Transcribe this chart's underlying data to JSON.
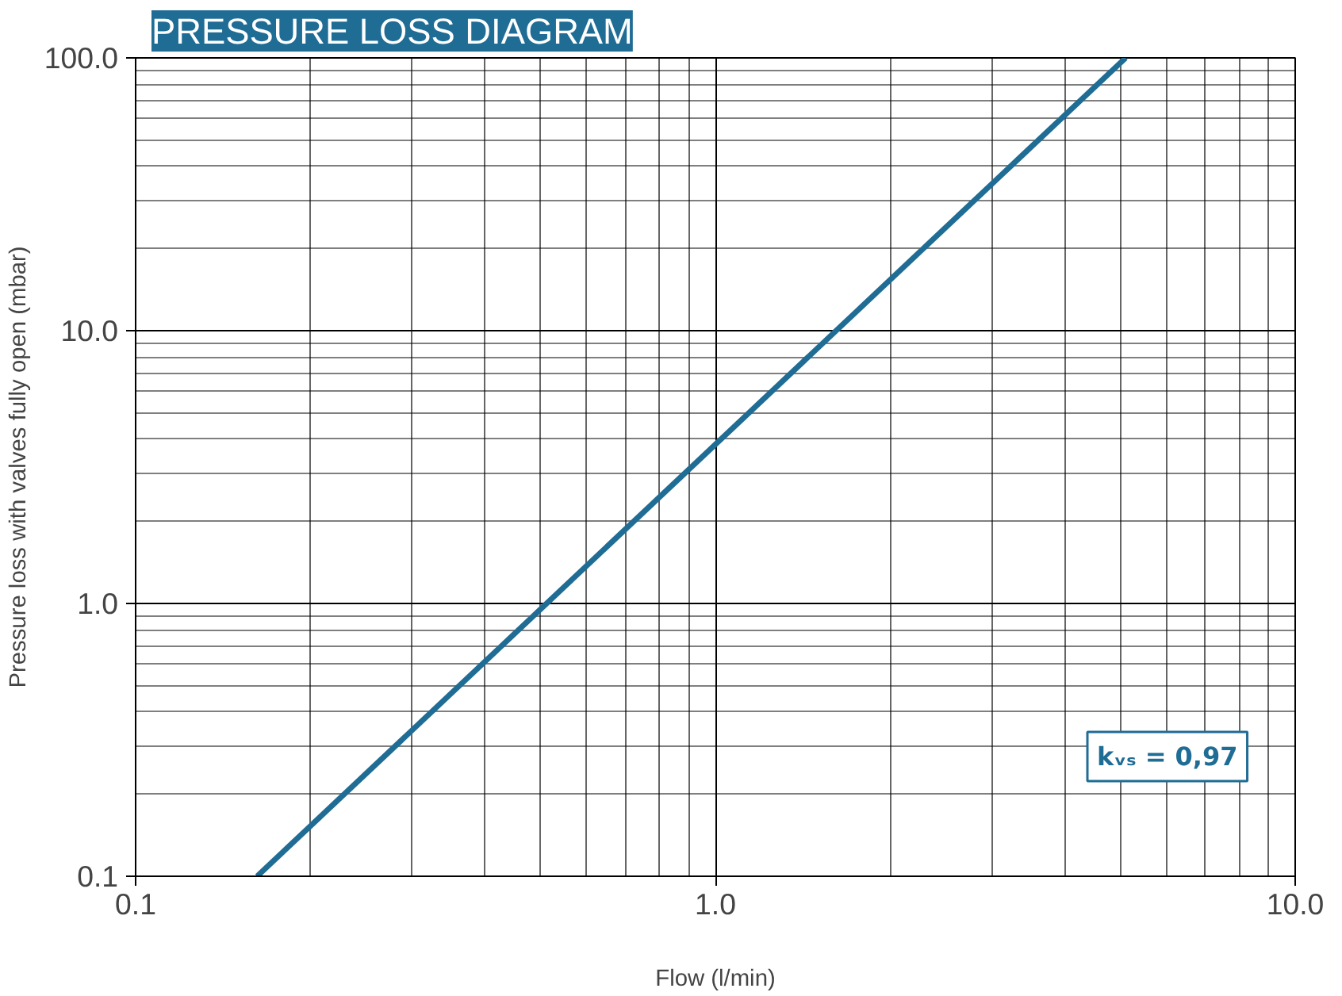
{
  "chart_data": {
    "type": "line",
    "title": "PRESSURE LOSS DIAGRAM",
    "xlabel": "Flow (l/min)",
    "ylabel": "Pressure loss with valves fully open (mbar)",
    "x": [
      0.162,
      5.1
    ],
    "series": [
      {
        "color": "#1f6c95",
        "values": [
          0.1,
          100
        ]
      }
    ],
    "log": "xy",
    "xlim": [
      0.1,
      10
    ],
    "ylim": [
      0.1,
      100
    ],
    "xticks": [
      {
        "value": 0.1,
        "label": "0.1"
      },
      {
        "value": 1,
        "label": "1.0"
      },
      {
        "value": 10,
        "label": "10.0"
      }
    ],
    "yticks": [
      {
        "value": 0.1,
        "label": "0.1"
      },
      {
        "value": 1,
        "label": "1.0"
      },
      {
        "value": 10,
        "label": "10.0"
      },
      {
        "value": 100,
        "label": "100.0"
      }
    ],
    "grid": true,
    "line_style": "solid",
    "marker": "none",
    "annotations": [
      "kᵥₛ = 0,97"
    ]
  }
}
